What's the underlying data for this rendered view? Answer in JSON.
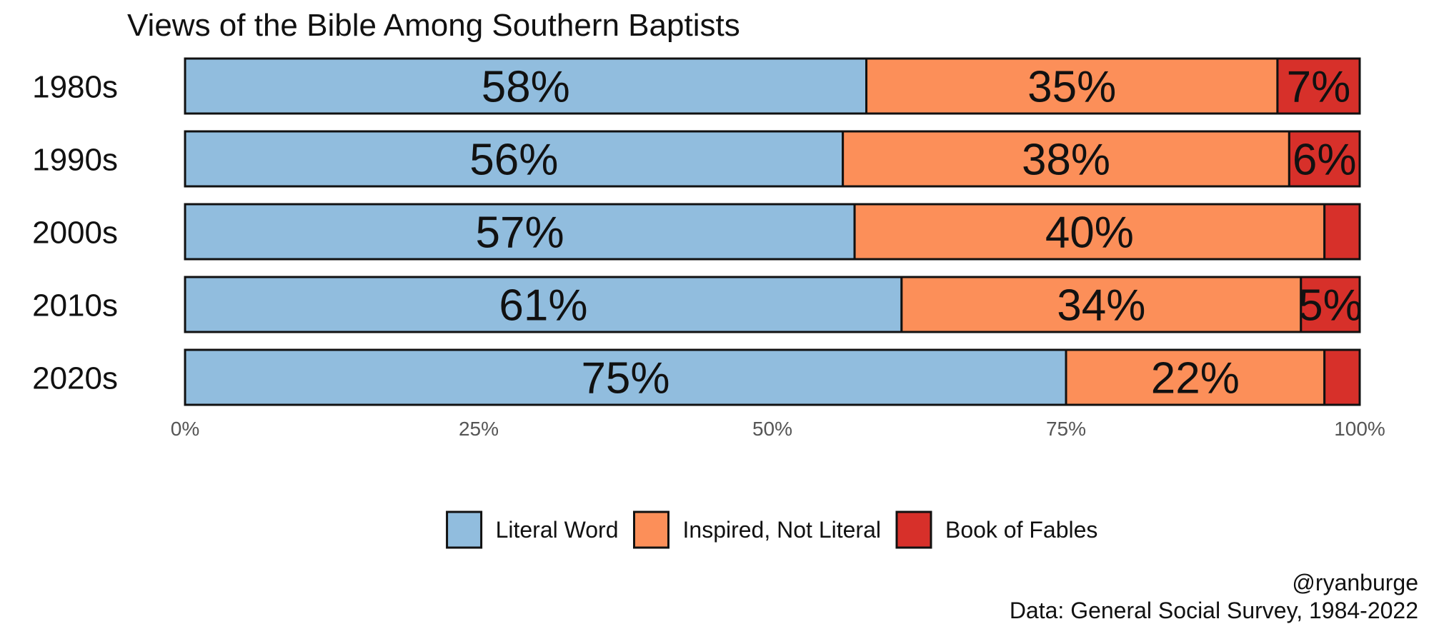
{
  "chart_data": {
    "type": "bar",
    "orientation": "horizontal",
    "stacked": true,
    "title": "Views of the Bible Among Southern Baptists",
    "categories": [
      "1980s",
      "1990s",
      "2000s",
      "2010s",
      "2020s"
    ],
    "series": [
      {
        "name": "Literal Word",
        "color": "#91bdde",
        "values": [
          58,
          56,
          57,
          61,
          75
        ],
        "labels": [
          "58%",
          "56%",
          "57%",
          "61%",
          "75%"
        ]
      },
      {
        "name": "Inspired, Not Literal",
        "color": "#fc8f59",
        "values": [
          35,
          38,
          40,
          34,
          22
        ],
        "labels": [
          "35%",
          "38%",
          "40%",
          "34%",
          "22%"
        ]
      },
      {
        "name": "Book of Fables",
        "color": "#d7302a",
        "values": [
          7,
          6,
          3.5,
          5,
          3
        ],
        "labels": [
          "7%",
          "6%",
          "",
          "5%",
          ""
        ]
      }
    ],
    "xlim": [
      0,
      100
    ],
    "x_ticks": [
      "0%",
      "25%",
      "50%",
      "75%",
      "100%"
    ],
    "x_tick_values": [
      0,
      25,
      50,
      75,
      100
    ],
    "grid": false,
    "legend_position": "bottom"
  },
  "caption": {
    "line1": "@ryanburge",
    "line2": "Data: General Social Survey, 1984-2022"
  }
}
